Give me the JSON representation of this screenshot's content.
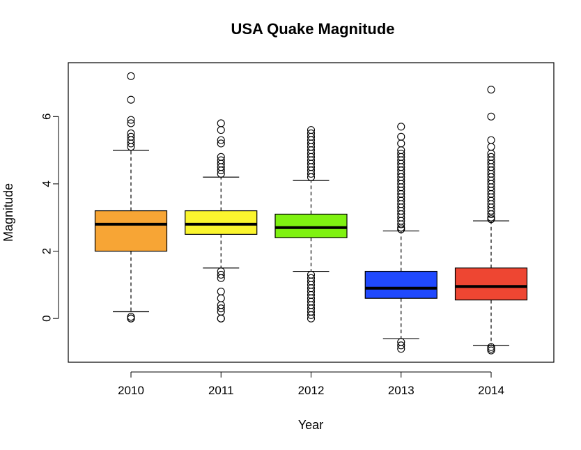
{
  "chart_data": {
    "type": "boxplot",
    "title": "USA Quake Magnitude",
    "xlabel": "Year",
    "ylabel": "Magnitude",
    "ylim": [
      -1.3,
      7.6
    ],
    "yticks": [
      0,
      2,
      4,
      6
    ],
    "grid": false,
    "categories": [
      "2010",
      "2011",
      "2012",
      "2013",
      "2014"
    ],
    "boxes": [
      {
        "category": "2010",
        "color": "#F7A535",
        "whisker_low": 0.2,
        "q1": 2.0,
        "median": 2.8,
        "q3": 3.2,
        "whisker_high": 5.0,
        "outliers": [
          7.2,
          6.5,
          5.9,
          5.8,
          5.5,
          5.4,
          5.3,
          5.2,
          5.1,
          0.05,
          0.0,
          0.0
        ]
      },
      {
        "category": "2011",
        "color": "#FBF52E",
        "whisker_low": 1.5,
        "q1": 2.5,
        "median": 2.8,
        "q3": 3.2,
        "whisker_high": 4.2,
        "outliers": [
          5.8,
          5.6,
          5.3,
          5.2,
          4.8,
          4.7,
          4.6,
          4.5,
          4.4,
          4.3,
          1.4,
          1.3,
          1.2,
          0.8,
          0.6,
          0.4,
          0.3,
          0.2,
          0.0,
          0.0
        ]
      },
      {
        "category": "2012",
        "color": "#7FF211",
        "whisker_low": 1.4,
        "q1": 2.4,
        "median": 2.7,
        "q3": 3.1,
        "whisker_high": 4.1,
        "outliers": [
          5.6,
          5.5,
          5.4,
          5.3,
          5.2,
          5.1,
          5.0,
          4.9,
          4.8,
          4.7,
          4.6,
          4.5,
          4.4,
          4.3,
          4.2,
          1.3,
          1.2,
          1.1,
          1.0,
          0.9,
          0.8,
          0.7,
          0.6,
          0.5,
          0.4,
          0.3,
          0.2,
          0.1,
          0.0
        ]
      },
      {
        "category": "2013",
        "color": "#2049FE",
        "whisker_low": -0.6,
        "q1": 0.6,
        "median": 0.9,
        "q3": 1.4,
        "whisker_high": 2.6,
        "outliers": [
          5.7,
          5.4,
          5.2,
          5.0,
          4.9,
          4.8,
          4.7,
          4.6,
          4.5,
          4.4,
          4.3,
          4.2,
          4.1,
          4.0,
          3.9,
          3.8,
          3.7,
          3.6,
          3.5,
          3.4,
          3.3,
          3.2,
          3.1,
          3.0,
          2.9,
          2.8,
          2.7,
          2.65,
          -0.7,
          -0.8,
          -0.9
        ]
      },
      {
        "category": "2014",
        "color": "#EE4632",
        "whisker_low": -0.8,
        "q1": 0.55,
        "median": 0.95,
        "q3": 1.5,
        "whisker_high": 2.9,
        "outliers": [
          6.8,
          6.0,
          5.3,
          5.1,
          4.9,
          4.8,
          4.7,
          4.6,
          4.5,
          4.4,
          4.3,
          4.2,
          4.1,
          4.0,
          3.9,
          3.8,
          3.7,
          3.6,
          3.5,
          3.4,
          3.3,
          3.2,
          3.1,
          3.0,
          2.95,
          -0.85,
          -0.9,
          -0.95
        ]
      }
    ]
  }
}
